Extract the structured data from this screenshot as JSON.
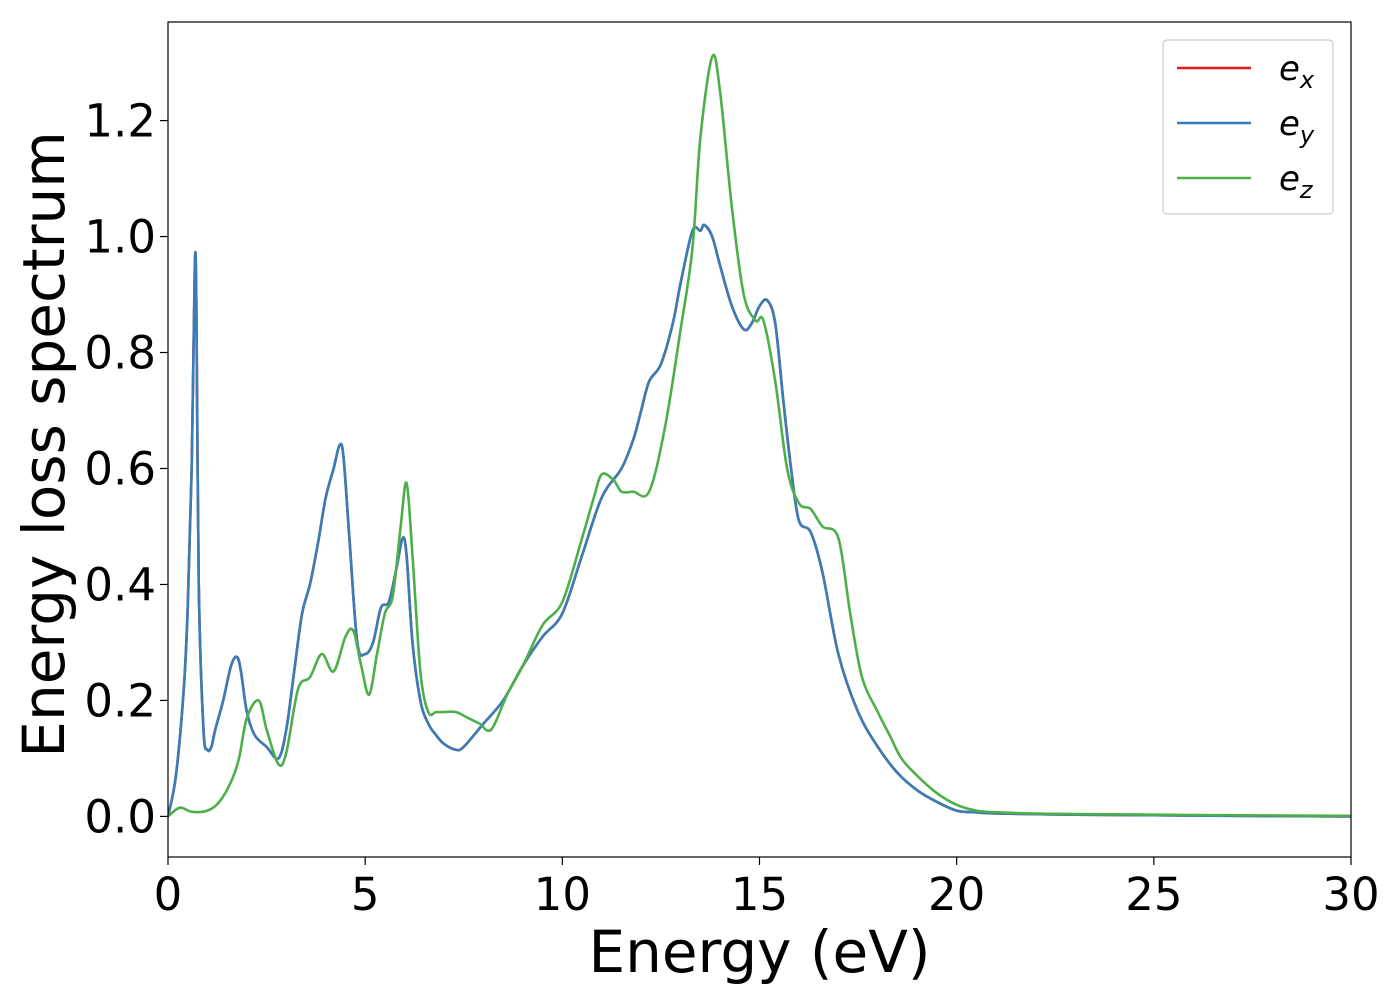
{
  "chart_data": {
    "type": "line",
    "title": "",
    "xlabel": "Energy (eV)",
    "ylabel": "Energy loss spectrum",
    "xlim": [
      0,
      30
    ],
    "ylim": [
      -0.07,
      1.37
    ],
    "xticks": [
      0,
      5,
      10,
      15,
      20,
      25,
      30
    ],
    "xtick_labels": [
      "0",
      "5",
      "10",
      "15",
      "20",
      "25",
      "30"
    ],
    "yticks": [
      0.0,
      0.2,
      0.4,
      0.6,
      0.8,
      1.0,
      1.2
    ],
    "ytick_labels": [
      "0.0",
      "0.2",
      "0.4",
      "0.6",
      "0.8",
      "1.0",
      "1.2"
    ],
    "grid": false,
    "legend_position": "top-right",
    "series": [
      {
        "name": "e",
        "subscript": "x",
        "color": "#e41a1c",
        "x": [
          0,
          0.2,
          0.4,
          0.5,
          0.6,
          0.68,
          0.72,
          0.78,
          0.9,
          1.0,
          1.1,
          1.2,
          1.4,
          1.6,
          1.75,
          1.85,
          2.0,
          2.2,
          2.5,
          2.8,
          3.0,
          3.2,
          3.4,
          3.6,
          3.8,
          4.0,
          4.2,
          4.35,
          4.45,
          4.6,
          4.8,
          5.0,
          5.2,
          5.4,
          5.6,
          5.8,
          5.95,
          6.05,
          6.2,
          6.4,
          6.6,
          6.8,
          7.0,
          7.3,
          7.5,
          8.0,
          8.5,
          9.0,
          9.5,
          10.0,
          10.5,
          11.0,
          11.5,
          11.8,
          12.0,
          12.2,
          12.5,
          12.8,
          13.0,
          13.3,
          13.5,
          13.6,
          13.8,
          14.0,
          14.3,
          14.6,
          14.8,
          15.0,
          15.2,
          15.4,
          15.6,
          15.8,
          16.0,
          16.3,
          16.6,
          17.0,
          17.5,
          18.0,
          18.5,
          19.0,
          19.5,
          20.0,
          20.5,
          21,
          22,
          23,
          25,
          27,
          30
        ],
        "y": [
          0.0,
          0.07,
          0.22,
          0.36,
          0.6,
          0.95,
          0.88,
          0.4,
          0.15,
          0.115,
          0.12,
          0.15,
          0.2,
          0.26,
          0.275,
          0.25,
          0.18,
          0.14,
          0.12,
          0.1,
          0.15,
          0.25,
          0.35,
          0.4,
          0.47,
          0.55,
          0.6,
          0.64,
          0.62,
          0.48,
          0.3,
          0.28,
          0.3,
          0.36,
          0.37,
          0.43,
          0.48,
          0.45,
          0.3,
          0.2,
          0.16,
          0.14,
          0.125,
          0.115,
          0.12,
          0.16,
          0.2,
          0.26,
          0.31,
          0.35,
          0.45,
          0.55,
          0.6,
          0.65,
          0.7,
          0.75,
          0.78,
          0.85,
          0.92,
          1.01,
          1.01,
          1.02,
          1.0,
          0.95,
          0.88,
          0.84,
          0.85,
          0.88,
          0.89,
          0.85,
          0.72,
          0.6,
          0.51,
          0.49,
          0.42,
          0.28,
          0.18,
          0.12,
          0.075,
          0.045,
          0.025,
          0.01,
          0.007,
          0.005,
          0.004,
          0.003,
          0.002,
          0.001,
          0.0
        ]
      },
      {
        "name": "e",
        "subscript": "y",
        "color": "#377eb8",
        "x": [
          0,
          0.2,
          0.4,
          0.5,
          0.6,
          0.68,
          0.72,
          0.78,
          0.9,
          1.0,
          1.1,
          1.2,
          1.4,
          1.6,
          1.75,
          1.85,
          2.0,
          2.2,
          2.5,
          2.8,
          3.0,
          3.2,
          3.4,
          3.6,
          3.8,
          4.0,
          4.2,
          4.35,
          4.45,
          4.6,
          4.8,
          5.0,
          5.2,
          5.4,
          5.6,
          5.8,
          5.95,
          6.05,
          6.2,
          6.4,
          6.6,
          6.8,
          7.0,
          7.3,
          7.5,
          8.0,
          8.5,
          9.0,
          9.5,
          10.0,
          10.5,
          11.0,
          11.5,
          11.8,
          12.0,
          12.2,
          12.5,
          12.8,
          13.0,
          13.3,
          13.5,
          13.6,
          13.8,
          14.0,
          14.3,
          14.6,
          14.8,
          15.0,
          15.2,
          15.4,
          15.6,
          15.8,
          16.0,
          16.3,
          16.6,
          17.0,
          17.5,
          18.0,
          18.5,
          19.0,
          19.5,
          20.0,
          20.5,
          21,
          22,
          23,
          25,
          27,
          30
        ],
        "y": [
          0.0,
          0.07,
          0.22,
          0.36,
          0.6,
          0.95,
          0.88,
          0.4,
          0.15,
          0.115,
          0.12,
          0.15,
          0.2,
          0.26,
          0.275,
          0.25,
          0.18,
          0.14,
          0.12,
          0.1,
          0.15,
          0.25,
          0.35,
          0.4,
          0.47,
          0.55,
          0.6,
          0.64,
          0.62,
          0.48,
          0.3,
          0.28,
          0.3,
          0.36,
          0.37,
          0.43,
          0.48,
          0.45,
          0.3,
          0.2,
          0.16,
          0.14,
          0.125,
          0.115,
          0.12,
          0.16,
          0.2,
          0.26,
          0.31,
          0.35,
          0.45,
          0.55,
          0.6,
          0.65,
          0.7,
          0.75,
          0.78,
          0.85,
          0.92,
          1.01,
          1.01,
          1.02,
          1.0,
          0.95,
          0.88,
          0.84,
          0.85,
          0.88,
          0.89,
          0.85,
          0.72,
          0.6,
          0.51,
          0.49,
          0.42,
          0.28,
          0.18,
          0.12,
          0.075,
          0.045,
          0.025,
          0.01,
          0.007,
          0.005,
          0.004,
          0.003,
          0.002,
          0.001,
          0.0
        ]
      },
      {
        "name": "e",
        "subscript": "z",
        "color": "#4daf4a",
        "x": [
          0,
          0.3,
          0.6,
          1.0,
          1.3,
          1.6,
          1.8,
          2.0,
          2.3,
          2.5,
          2.8,
          3.0,
          3.3,
          3.6,
          3.9,
          4.2,
          4.5,
          4.7,
          4.9,
          5.1,
          5.3,
          5.5,
          5.7,
          5.9,
          6.05,
          6.2,
          6.4,
          6.6,
          6.8,
          7.0,
          7.3,
          7.6,
          7.9,
          8.2,
          8.6,
          9.0,
          9.5,
          10.0,
          10.5,
          10.8,
          11.0,
          11.3,
          11.5,
          11.8,
          12.2,
          12.6,
          13.0,
          13.3,
          13.5,
          13.8,
          14.0,
          14.3,
          14.6,
          14.9,
          15.1,
          15.4,
          15.7,
          16.0,
          16.3,
          16.6,
          17.0,
          17.3,
          17.6,
          18.0,
          18.3,
          18.6,
          19.0,
          19.5,
          20.0,
          20.5,
          21,
          22,
          23,
          25,
          27,
          30
        ],
        "y": [
          0.0,
          0.015,
          0.008,
          0.01,
          0.025,
          0.06,
          0.1,
          0.17,
          0.2,
          0.15,
          0.09,
          0.11,
          0.22,
          0.24,
          0.28,
          0.25,
          0.31,
          0.32,
          0.26,
          0.21,
          0.28,
          0.35,
          0.38,
          0.5,
          0.575,
          0.45,
          0.25,
          0.18,
          0.18,
          0.18,
          0.18,
          0.17,
          0.16,
          0.15,
          0.21,
          0.26,
          0.33,
          0.37,
          0.48,
          0.55,
          0.59,
          0.58,
          0.56,
          0.56,
          0.56,
          0.67,
          0.84,
          0.98,
          1.17,
          1.31,
          1.25,
          1.05,
          0.9,
          0.855,
          0.855,
          0.75,
          0.6,
          0.54,
          0.53,
          0.5,
          0.48,
          0.35,
          0.24,
          0.18,
          0.14,
          0.1,
          0.07,
          0.04,
          0.02,
          0.01,
          0.007,
          0.005,
          0.004,
          0.003,
          0.002,
          0.001
        ]
      }
    ]
  }
}
